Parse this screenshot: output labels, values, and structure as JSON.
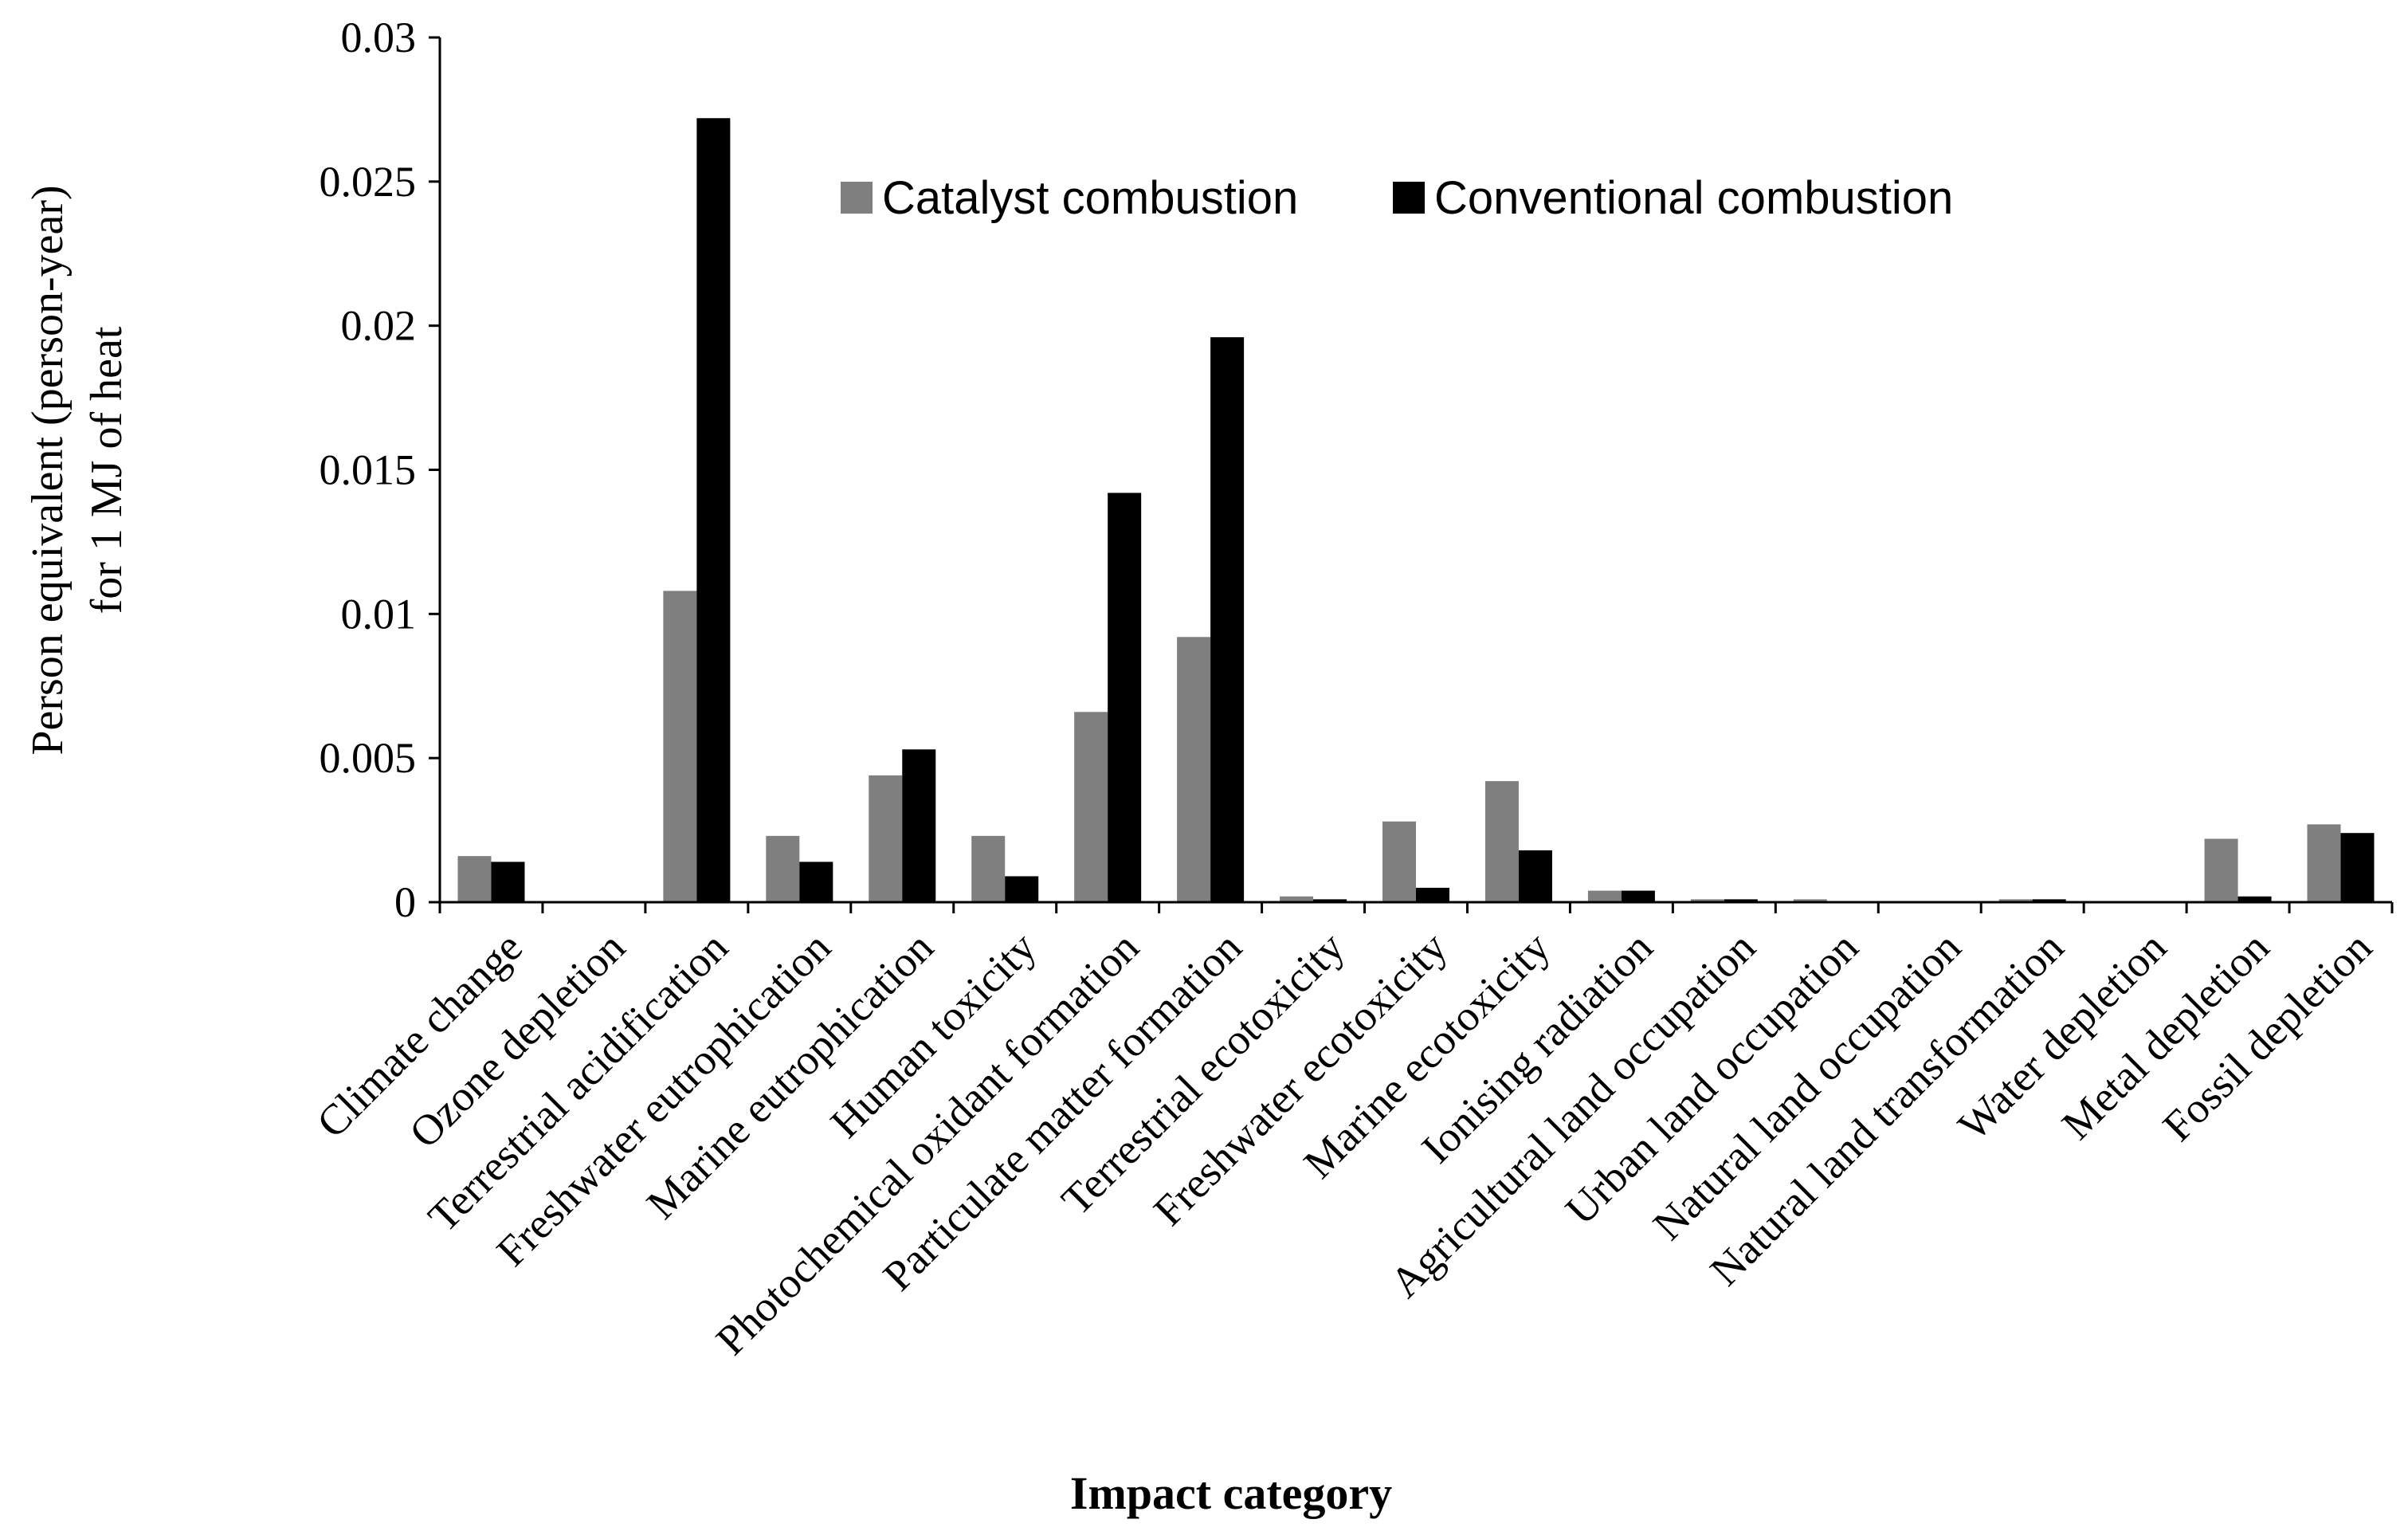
{
  "chart_data": {
    "type": "bar",
    "title": "",
    "xlabel": "Impact category",
    "ylabel_line1": "Person equivalent (person-year)",
    "ylabel_line2": "for 1 MJ of heat",
    "ylim": [
      0,
      0.03
    ],
    "yticks": [
      "0",
      "0.005",
      "0.01",
      "0.015",
      "0.02",
      "0.025",
      "0.03"
    ],
    "categories": [
      "Climate change",
      "Ozone depletion",
      "Terrestrial acidification",
      "Freshwater eutrophication",
      "Marine eutrophication",
      "Human toxicity",
      "Photochemical oxidant formation",
      "Particulate matter formation",
      "Terrestrial ecotoxicity",
      "Freshwater ecotoxicity",
      "Marine ecotoxicity",
      "Ionising radiation",
      "Agricultural land occupation",
      "Urban land occupation",
      "Natural land occupation",
      "Natural land transformation",
      "Water depletion",
      "Metal depletion",
      "Fossil depletion"
    ],
    "series": [
      {
        "name": "Catalyst combustion",
        "color": "#7f7f7f",
        "values": [
          0.0016,
          0.0,
          0.0108,
          0.0023,
          0.0044,
          0.0023,
          0.0066,
          0.0092,
          0.0002,
          0.0028,
          0.0042,
          0.0004,
          0.0001,
          0.0001,
          0.0,
          0.0001,
          0.0,
          0.0022,
          0.0027
        ]
      },
      {
        "name": "Conventional combustion",
        "color": "#000000",
        "values": [
          0.0014,
          0.0,
          0.0272,
          0.0014,
          0.0053,
          0.0009,
          0.0142,
          0.0196,
          0.0001,
          0.0005,
          0.0018,
          0.0004,
          0.0001,
          0.0,
          0.0,
          0.0001,
          0.0,
          0.0002,
          0.0024
        ]
      }
    ],
    "legend": [
      "Catalyst combustion",
      "Conventional combustion"
    ],
    "legend_position": "top-right",
    "grid": false
  }
}
